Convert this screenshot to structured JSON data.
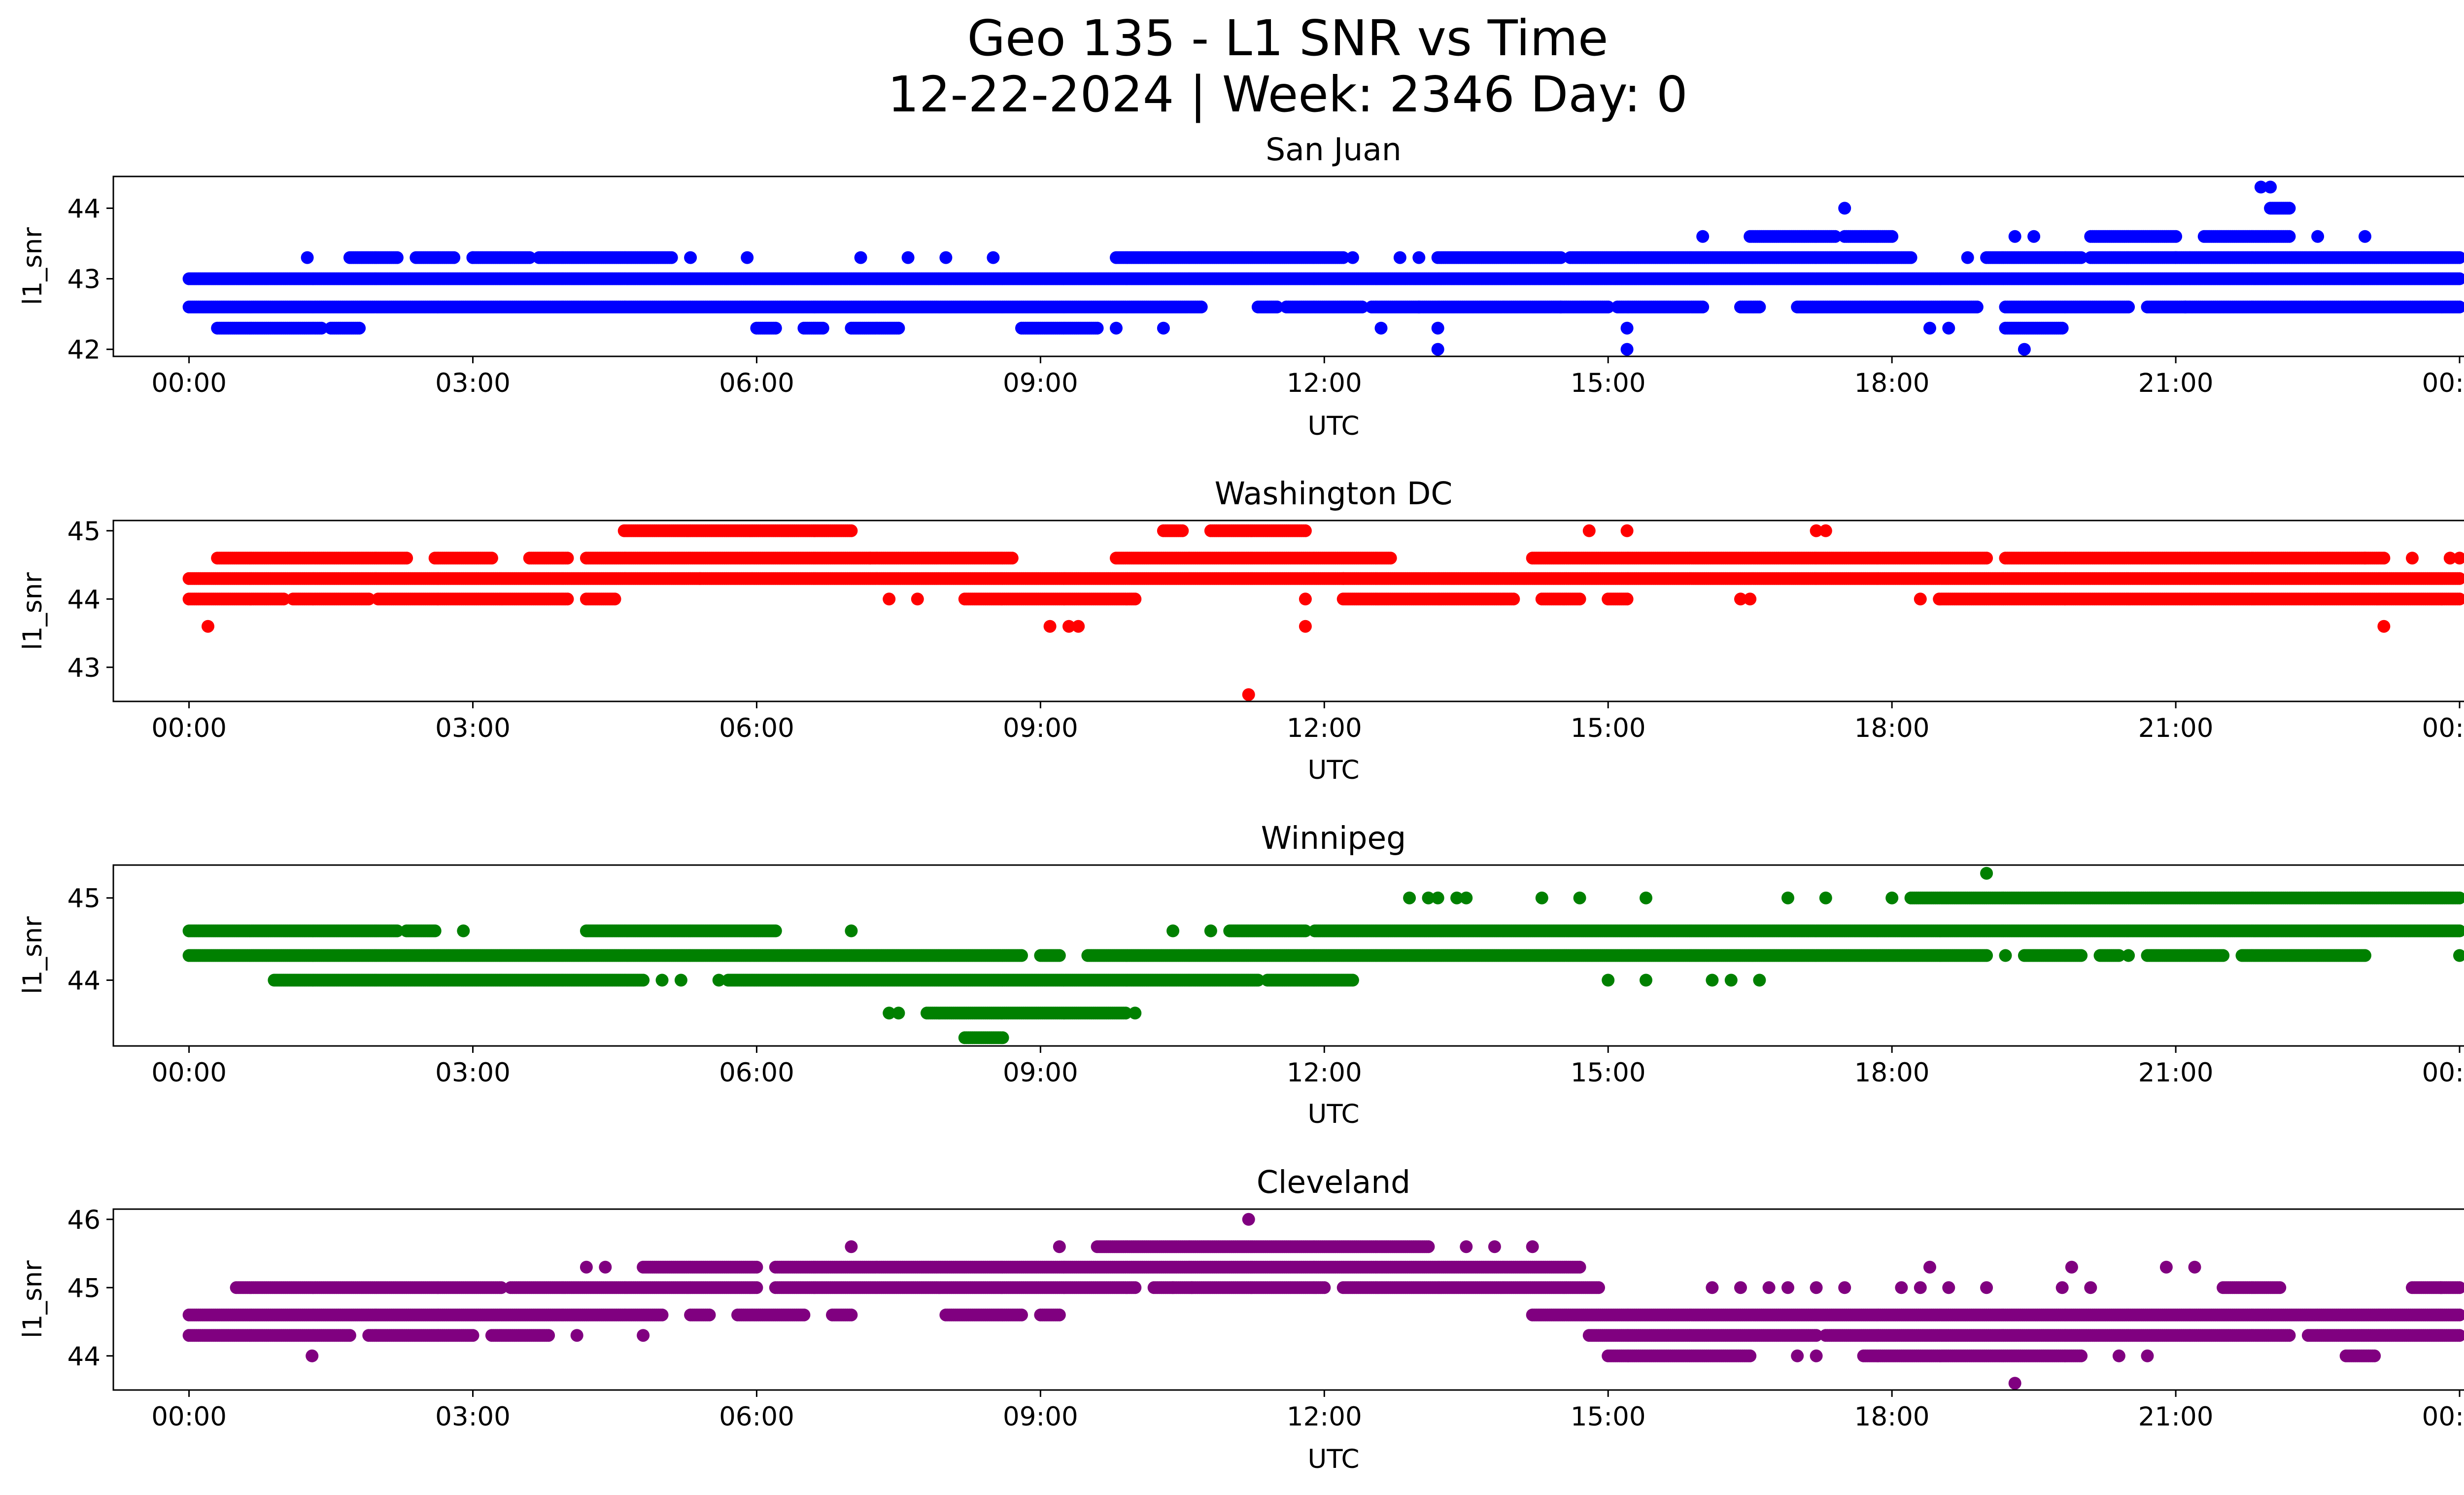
{
  "suptitle_line1": "Geo 135 - L1 SNR vs Time",
  "suptitle_line2": "12-22-2024 | Week: 2346 Day: 0",
  "chart_data": [
    {
      "type": "scatter",
      "title": "San Juan",
      "xlabel": "UTC",
      "ylabel": "l1_snr",
      "color": "#0000ff",
      "xlim": [
        -0.8,
        25.0
      ],
      "ylim": [
        41.9,
        44.45
      ],
      "yticks": [
        42,
        43,
        44
      ],
      "xticks": [
        0,
        3,
        6,
        9,
        12,
        15,
        18,
        21,
        24
      ],
      "xtick_labels": [
        "00:00",
        "03:00",
        "06:00",
        "09:00",
        "12:00",
        "15:00",
        "18:00",
        "21:00",
        "00:00"
      ],
      "levels": [
        {
          "y": 43.0,
          "segments": [
            [
              0,
              24
            ]
          ]
        },
        {
          "y": 42.6,
          "segments": [
            [
              0,
              10.7
            ],
            [
              11.3,
              11.5
            ],
            [
              11.6,
              12.4
            ],
            [
              12.5,
              15.0
            ],
            [
              15.1,
              16.0
            ],
            [
              16.4,
              16.6
            ],
            [
              17.0,
              18.9
            ],
            [
              19.2,
              20.5
            ],
            [
              20.7,
              24
            ]
          ]
        },
        {
          "y": 43.3,
          "segments": [
            [
              1.7,
              2.2
            ],
            [
              2.4,
              2.8
            ],
            [
              3.0,
              3.6
            ],
            [
              3.7,
              5.1
            ],
            [
              9.8,
              12.2
            ],
            [
              13.2,
              14.5
            ],
            [
              14.6,
              18.2
            ],
            [
              19.0,
              20.0
            ],
            [
              20.1,
              24
            ]
          ]
        },
        {
          "y": 42.3,
          "segments": [
            [
              0.3,
              1.4
            ],
            [
              1.5,
              1.8
            ],
            [
              6.0,
              6.2
            ],
            [
              6.5,
              6.7
            ],
            [
              7.0,
              7.5
            ],
            [
              8.8,
              9.6
            ],
            [
              19.2,
              19.8
            ]
          ]
        },
        {
          "y": 43.6,
          "segments": [
            [
              16.5,
              17.4
            ],
            [
              17.5,
              18.0
            ],
            [
              20.1,
              21.0
            ],
            [
              21.3,
              22.2
            ]
          ]
        },
        {
          "y": 44.0,
          "segments": [
            [
              22.0,
              22.2
            ]
          ]
        }
      ],
      "points": [
        [
          1.25,
          43.3
        ],
        [
          3.0,
          43.3
        ],
        [
          5.3,
          43.3
        ],
        [
          5.9,
          43.3
        ],
        [
          7.1,
          43.3
        ],
        [
          7.6,
          43.3
        ],
        [
          8.0,
          43.3
        ],
        [
          8.5,
          43.3
        ],
        [
          12.8,
          43.3
        ],
        [
          13.0,
          43.3
        ],
        [
          18.8,
          43.3
        ],
        [
          12.6,
          42.3
        ],
        [
          13.2,
          42.3
        ],
        [
          15.2,
          42.3
        ],
        [
          18.4,
          42.3
        ],
        [
          18.6,
          42.3
        ],
        [
          9.8,
          42.3
        ],
        [
          10.3,
          42.3
        ],
        [
          13.2,
          42.0
        ],
        [
          15.2,
          42.0
        ],
        [
          19.4,
          42.0
        ],
        [
          16.0,
          43.6
        ],
        [
          19.3,
          43.6
        ],
        [
          19.5,
          43.6
        ],
        [
          22.5,
          43.6
        ],
        [
          23.0,
          43.6
        ],
        [
          17.5,
          44.0
        ],
        [
          21.9,
          44.3
        ],
        [
          22.0,
          44.3
        ],
        [
          13.0,
          42.6
        ],
        [
          14.5,
          42.6
        ],
        [
          21.1,
          42.6
        ],
        [
          21.0,
          43.3
        ],
        [
          12.3,
          43.3
        ]
      ]
    },
    {
      "type": "scatter",
      "title": "Washington DC",
      "xlabel": "UTC",
      "ylabel": "l1_snr",
      "color": "#ff0000",
      "xlim": [
        -0.8,
        25.0
      ],
      "ylim": [
        42.5,
        45.15
      ],
      "yticks": [
        43,
        44,
        45
      ],
      "xticks": [
        0,
        3,
        6,
        9,
        12,
        15,
        18,
        21,
        24
      ],
      "xtick_labels": [
        "00:00",
        "03:00",
        "06:00",
        "09:00",
        "12:00",
        "15:00",
        "18:00",
        "21:00",
        "00:00"
      ],
      "levels": [
        {
          "y": 44.3,
          "segments": [
            [
              0,
              24
            ]
          ]
        },
        {
          "y": 44.0,
          "segments": [
            [
              0,
              1.0
            ],
            [
              1.1,
              1.9
            ],
            [
              2.0,
              4.0
            ],
            [
              4.2,
              4.5
            ],
            [
              8.2,
              10.0
            ],
            [
              12.2,
              14.0
            ],
            [
              14.3,
              14.7
            ],
            [
              15.0,
              15.2
            ],
            [
              18.5,
              24
            ]
          ]
        },
        {
          "y": 44.6,
          "segments": [
            [
              0.3,
              2.3
            ],
            [
              2.6,
              3.2
            ],
            [
              3.6,
              4.0
            ],
            [
              4.2,
              8.7
            ],
            [
              9.8,
              12.7
            ],
            [
              14.2,
              19.0
            ],
            [
              19.2,
              23.2
            ]
          ]
        },
        {
          "y": 45.0,
          "segments": [
            [
              4.6,
              7.0
            ],
            [
              10.3,
              10.5
            ],
            [
              10.8,
              11.8
            ]
          ]
        }
      ],
      "points": [
        [
          0.2,
          43.6
        ],
        [
          9.1,
          43.6
        ],
        [
          9.3,
          43.6
        ],
        [
          9.4,
          43.6
        ],
        [
          11.8,
          43.6
        ],
        [
          23.2,
          43.6
        ],
        [
          11.2,
          42.6
        ],
        [
          7.4,
          44.0
        ],
        [
          7.7,
          44.0
        ],
        [
          16.4,
          44.0
        ],
        [
          16.5,
          44.0
        ],
        [
          18.3,
          44.0
        ],
        [
          11.8,
          44.0
        ],
        [
          15.2,
          45.0
        ],
        [
          14.8,
          45.0
        ],
        [
          17.2,
          45.0
        ],
        [
          17.3,
          45.0
        ],
        [
          23.5,
          44.6
        ],
        [
          23.9,
          44.6
        ],
        [
          24.0,
          44.6
        ],
        [
          5.4,
          44.3
        ],
        [
          12.2,
          44.3
        ],
        [
          7.2,
          44.6
        ],
        [
          23.0,
          44.6
        ]
      ]
    },
    {
      "type": "scatter",
      "title": "Winnipeg",
      "xlabel": "UTC",
      "ylabel": "l1_snr",
      "color": "#008000",
      "xlim": [
        -0.8,
        25.0
      ],
      "ylim": [
        43.2,
        45.4
      ],
      "yticks": [
        44,
        45
      ],
      "xticks": [
        0,
        3,
        6,
        9,
        12,
        15,
        18,
        21,
        24
      ],
      "xtick_labels": [
        "00:00",
        "03:00",
        "06:00",
        "09:00",
        "12:00",
        "15:00",
        "18:00",
        "21:00",
        "00:00"
      ],
      "levels": [
        {
          "y": 44.3,
          "segments": [
            [
              0,
              8.8
            ],
            [
              9.0,
              9.2
            ],
            [
              9.5,
              19.0
            ],
            [
              19.4,
              20.0
            ],
            [
              20.2,
              20.4
            ],
            [
              20.7,
              21.5
            ],
            [
              21.7,
              23.0
            ]
          ]
        },
        {
          "y": 44.0,
          "segments": [
            [
              0.9,
              4.8
            ],
            [
              5.7,
              11.3
            ],
            [
              11.4,
              12.3
            ]
          ]
        },
        {
          "y": 44.6,
          "segments": [
            [
              0,
              2.2
            ],
            [
              2.3,
              2.6
            ],
            [
              4.2,
              6.2
            ],
            [
              11.0,
              11.8
            ],
            [
              11.9,
              24
            ]
          ]
        },
        {
          "y": 45.0,
          "segments": [
            [
              18.2,
              24
            ]
          ]
        },
        {
          "y": 43.6,
          "segments": [
            [
              7.8,
              9.9
            ]
          ]
        },
        {
          "y": 43.3,
          "segments": [
            [
              8.2,
              8.6
            ]
          ]
        }
      ],
      "points": [
        [
          2.9,
          44.6
        ],
        [
          7.0,
          44.6
        ],
        [
          10.4,
          44.6
        ],
        [
          10.8,
          44.6
        ],
        [
          5.0,
          44.0
        ],
        [
          5.2,
          44.0
        ],
        [
          5.6,
          44.0
        ],
        [
          15.0,
          44.0
        ],
        [
          15.4,
          44.0
        ],
        [
          16.1,
          44.0
        ],
        [
          16.3,
          44.0
        ],
        [
          16.6,
          44.0
        ],
        [
          12.9,
          45.0
        ],
        [
          13.1,
          45.0
        ],
        [
          13.2,
          45.0
        ],
        [
          13.4,
          45.0
        ],
        [
          13.5,
          45.0
        ],
        [
          14.3,
          45.0
        ],
        [
          14.7,
          45.0
        ],
        [
          15.4,
          45.0
        ],
        [
          16.9,
          45.0
        ],
        [
          17.3,
          45.0
        ],
        [
          18.0,
          45.0
        ],
        [
          19.0,
          45.3
        ],
        [
          7.4,
          43.6
        ],
        [
          7.5,
          43.6
        ],
        [
          10.0,
          43.6
        ],
        [
          24.0,
          44.3
        ],
        [
          19.2,
          44.3
        ],
        [
          20.5,
          44.3
        ]
      ]
    },
    {
      "type": "scatter",
      "title": "Cleveland",
      "xlabel": "UTC",
      "ylabel": "l1_snr",
      "color": "#800080",
      "xlim": [
        -0.8,
        25.0
      ],
      "ylim": [
        43.5,
        46.15
      ],
      "yticks": [
        44,
        45,
        46
      ],
      "xticks": [
        0,
        3,
        6,
        9,
        12,
        15,
        18,
        21,
        24
      ],
      "xtick_labels": [
        "00:00",
        "03:00",
        "06:00",
        "09:00",
        "12:00",
        "15:00",
        "18:00",
        "21:00",
        "00:00"
      ],
      "levels": [
        {
          "y": 44.6,
          "segments": [
            [
              0,
              5.0
            ],
            [
              5.3,
              5.5
            ],
            [
              5.8,
              6.5
            ],
            [
              6.8,
              7.0
            ],
            [
              8.0,
              8.8
            ],
            [
              9.0,
              9.2
            ],
            [
              14.2,
              24
            ]
          ]
        },
        {
          "y": 44.3,
          "segments": [
            [
              0,
              1.7
            ],
            [
              1.9,
              3.0
            ],
            [
              3.2,
              3.8
            ],
            [
              14.8,
              17.2
            ],
            [
              17.3,
              22.2
            ],
            [
              22.4,
              24
            ]
          ]
        },
        {
          "y": 45.0,
          "segments": [
            [
              0.5,
              3.3
            ],
            [
              3.4,
              6.0
            ],
            [
              6.2,
              10.0
            ],
            [
              10.2,
              12.0
            ],
            [
              12.2,
              14.9
            ],
            [
              21.5,
              22.1
            ],
            [
              23.5,
              24
            ]
          ]
        },
        {
          "y": 45.3,
          "segments": [
            [
              4.8,
              6.0
            ],
            [
              6.2,
              14.7
            ]
          ]
        },
        {
          "y": 45.6,
          "segments": [
            [
              9.6,
              13.1
            ]
          ]
        },
        {
          "y": 44.0,
          "segments": [
            [
              15.0,
              16.5
            ],
            [
              17.7,
              20.0
            ],
            [
              22.8,
              23.1
            ]
          ]
        }
      ],
      "points": [
        [
          1.3,
          44.0
        ],
        [
          7.0,
          45.6
        ],
        [
          9.2,
          45.6
        ],
        [
          13.5,
          45.6
        ],
        [
          13.8,
          45.6
        ],
        [
          14.2,
          45.6
        ],
        [
          11.2,
          46.0
        ],
        [
          4.2,
          45.3
        ],
        [
          4.4,
          45.3
        ],
        [
          4.8,
          44.3
        ],
        [
          4.1,
          44.3
        ],
        [
          19.3,
          43.6
        ],
        [
          16.1,
          45.0
        ],
        [
          16.4,
          45.0
        ],
        [
          16.7,
          45.0
        ],
        [
          16.9,
          45.0
        ],
        [
          17.2,
          45.0
        ],
        [
          17.5,
          45.0
        ],
        [
          18.1,
          45.0
        ],
        [
          18.4,
          45.3
        ],
        [
          19.8,
          45.0
        ],
        [
          20.1,
          45.0
        ],
        [
          19.9,
          45.3
        ],
        [
          20.9,
          45.3
        ],
        [
          21.2,
          45.3
        ],
        [
          20.4,
          44.0
        ],
        [
          20.7,
          44.0
        ],
        [
          18.3,
          45.0
        ],
        [
          18.6,
          45.0
        ],
        [
          19.0,
          45.0
        ],
        [
          10.4,
          45.0
        ],
        [
          10.6,
          45.0
        ],
        [
          17.0,
          44.0
        ],
        [
          17.2,
          44.0
        ],
        [
          23.8,
          45.0
        ]
      ]
    }
  ]
}
